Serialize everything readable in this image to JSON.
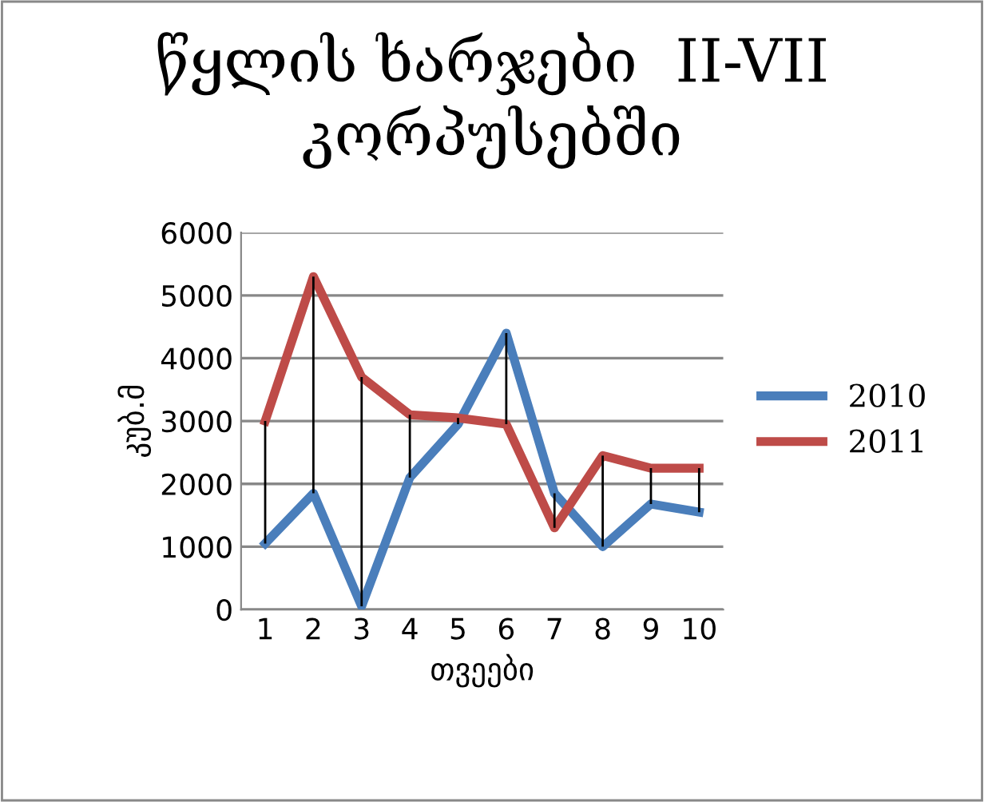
{
  "chart_data": {
    "type": "line",
    "title": "წყლის ხარჯები  II-VII კორპუსებში",
    "xlabel": "თვეები",
    "ylabel": "კუბ.მ",
    "categories": [
      "1",
      "2",
      "3",
      "4",
      "5",
      "6",
      "7",
      "8",
      "9",
      "10"
    ],
    "series": [
      {
        "name": "2010",
        "color": "#4a7ebb",
        "values": [
          1050,
          1850,
          50,
          2100,
          2950,
          4400,
          1850,
          1000,
          1680,
          1550
        ]
      },
      {
        "name": "2011",
        "color": "#be4b48",
        "values": [
          3000,
          5300,
          3700,
          3100,
          3050,
          2950,
          1300,
          2450,
          2250,
          2250
        ],
        "errors": [
          [
            1050,
            3000
          ],
          [
            1850,
            5300
          ],
          [
            50,
            3700
          ],
          [
            2100,
            3100
          ],
          [
            2950,
            3050
          ],
          [
            2950,
            4400
          ],
          [
            1300,
            1850
          ],
          [
            1000,
            2450
          ],
          [
            1680,
            2250
          ],
          [
            1550,
            2250
          ]
        ]
      }
    ],
    "ylim": [
      0,
      6000
    ],
    "yticks": [
      0,
      1000,
      2000,
      3000,
      4000,
      5000,
      6000
    ],
    "grid": "y",
    "legend": "right",
    "marker": "none",
    "line_style": "solid"
  }
}
